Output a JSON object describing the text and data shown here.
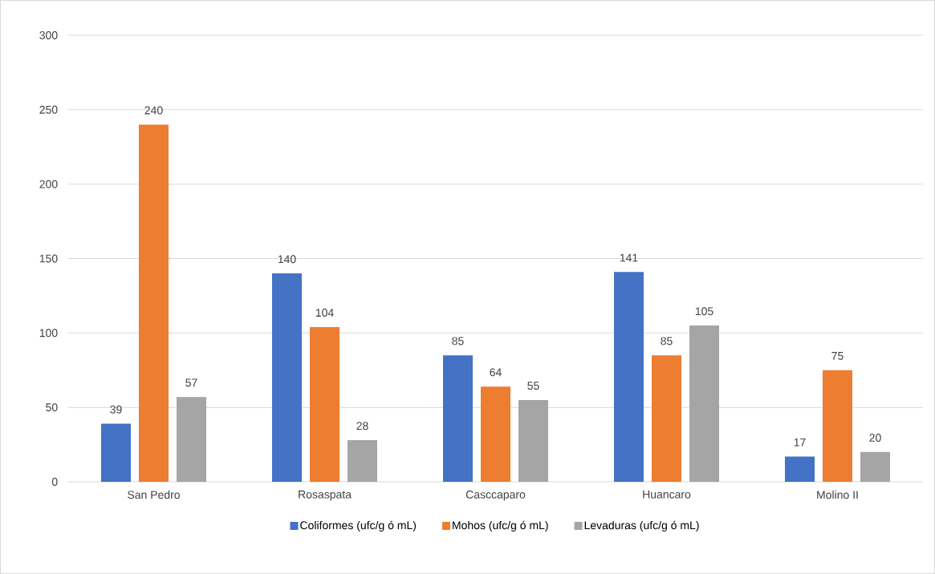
{
  "chart_data": {
    "type": "bar",
    "categories": [
      "San Pedro",
      "Rosaspata",
      "Casccaparo",
      "Huancaro",
      "Molino II"
    ],
    "series": [
      {
        "name": "Coliformes (ufc/g ó mL)",
        "color": "#4472c4",
        "values": [
          39,
          140,
          85,
          141,
          17
        ]
      },
      {
        "name": "Mohos (ufc/g ó mL)",
        "color": "#ed7d31",
        "values": [
          240,
          104,
          64,
          85,
          75
        ]
      },
      {
        "name": "Levaduras (ufc/g ó mL)",
        "color": "#a5a5a5",
        "values": [
          57,
          28,
          55,
          105,
          20
        ]
      }
    ],
    "ylim": [
      0,
      300
    ],
    "yticks": [
      0,
      50,
      100,
      150,
      200,
      250,
      300
    ],
    "grid": "y",
    "legend": "bottom",
    "data_labels": true
  }
}
